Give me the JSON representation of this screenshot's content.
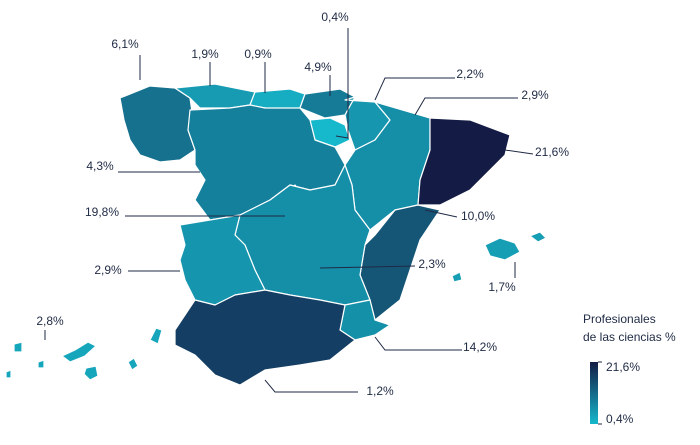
{
  "chart_data": {
    "type": "choropleth",
    "values": [
      6.1,
      1.9,
      0.9,
      4.9,
      0.4,
      2.2,
      2.9,
      21.6,
      4.3,
      19.8,
      10.0,
      2.9,
      2.3,
      1.7,
      2.8,
      14.2,
      1.2
    ],
    "value_labels": [
      "6,1%",
      "1,9%",
      "0,9%",
      "4,9%",
      "0,4%",
      "2,2%",
      "2,9%",
      "21,6%",
      "4,3%",
      "19,8%",
      "10,0%",
      "2,9%",
      "2,3%",
      "1,7%",
      "2,8%",
      "14,2%",
      "1,2%"
    ],
    "color_min": "#16b8cc",
    "color_max": "#141c45",
    "scale": "sqrt",
    "legend_title": [
      "Profesionales",
      "de las ciencias %"
    ],
    "legend_ticks": [
      {
        "value": 21.6,
        "label": "21,6%"
      },
      {
        "value": 0.4,
        "label": "0,4%"
      }
    ]
  }
}
